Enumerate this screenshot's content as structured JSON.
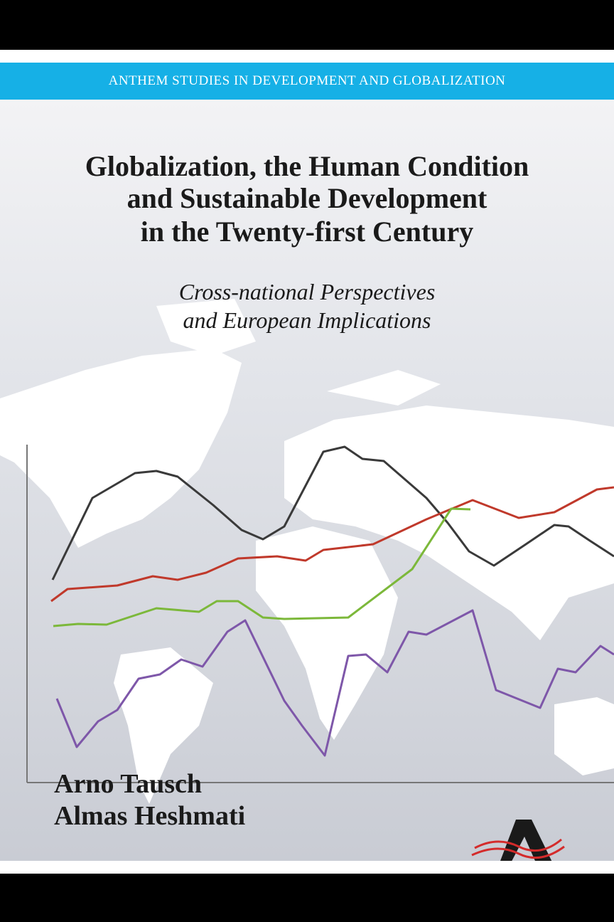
{
  "header": {
    "series": "ANTHEM STUDIES IN DEVELOPMENT AND GLOBALIZATION"
  },
  "title": {
    "lines": [
      "Globalization, the Human Condition",
      "and Sustainable Development",
      "in the Twenty-first Century"
    ]
  },
  "subtitle": {
    "lines": [
      "Cross-national Perspectives",
      "and European Implications"
    ]
  },
  "authors": [
    "Arno Tausch",
    "Almas Heshmati"
  ]
}
